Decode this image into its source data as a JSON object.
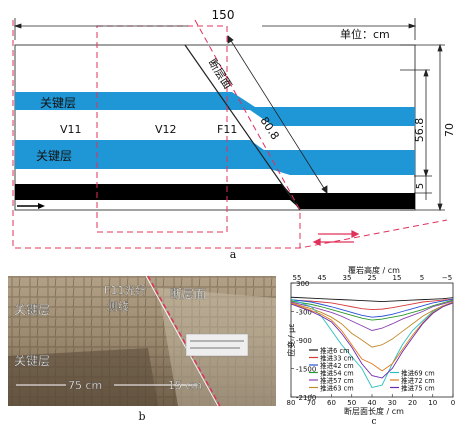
{
  "panel_a": {
    "panel_label": "a",
    "dim_top": "150",
    "unit": "单位：cm",
    "fault_label": "断层面",
    "fault_length": "80.8",
    "key_layer_1": "关键层",
    "key_layer_2": "关键层",
    "line_v11": "V11",
    "line_v12": "V12",
    "line_f11": "F11",
    "dim_56_8": "56.8",
    "dim_70": "70",
    "dim_5": "5",
    "colors": {
      "key_layer": "#1f97d6",
      "coal": "#000000",
      "dash": "#e0305a"
    }
  },
  "panel_b": {
    "panel_label": "b",
    "label_key_upper": "关键层",
    "label_key_lower": "关键层",
    "label_fiber_1": "F11光纤",
    "label_fiber_2": "测线",
    "label_fault": "断层面",
    "label_75": "75 cm",
    "label_15": "15 cm"
  },
  "chart_data": {
    "type": "line",
    "panel_label": "c",
    "top_axis_label": "覆岩高度 / cm",
    "top_ticks": [
      "55",
      "45",
      "35",
      "25",
      "15",
      "5",
      "−5"
    ],
    "xlabel": "断层面长度 / cm",
    "ylabel": "应变 / με",
    "xlim": [
      80,
      0
    ],
    "ylim": [
      -2100,
      300
    ],
    "x_ticks": [
      80,
      70,
      60,
      50,
      40,
      30,
      20,
      10,
      0
    ],
    "y_ticks": [
      300,
      -300,
      -900,
      -1500,
      -2100
    ],
    "legend_left": [
      "推进6 cm",
      "推进33 cm",
      "推进42 cm",
      "推进54 cm",
      "推进57 cm",
      "推进63 cm"
    ],
    "legend_right": [
      "推进69 cm",
      "推进72 cm",
      "推进75 cm"
    ],
    "x": [
      80,
      70,
      65,
      60,
      55,
      50,
      45,
      40,
      35,
      30,
      25,
      20,
      15,
      10,
      5,
      0
    ],
    "series": [
      {
        "name": "推进6 cm",
        "color": "#1a1a1a",
        "values": [
          0,
          -20,
          -30,
          -40,
          -50,
          -60,
          -70,
          -80,
          -90,
          -80,
          -70,
          -60,
          -50,
          -40,
          -30,
          -10
        ]
      },
      {
        "name": "推进33 cm",
        "color": "#d63a3a",
        "values": [
          -60,
          -80,
          -100,
          -120,
          -160,
          -200,
          -240,
          -260,
          -250,
          -220,
          -180,
          -140,
          -100,
          -80,
          -60,
          -40
        ]
      },
      {
        "name": "推进42 cm",
        "color": "#2a4fd6",
        "values": [
          -50,
          -100,
          -150,
          -200,
          -260,
          -320,
          -380,
          -420,
          -400,
          -360,
          -300,
          -240,
          -180,
          -120,
          -80,
          -40
        ]
      },
      {
        "name": "推进54 cm",
        "color": "#2a9a2a",
        "values": [
          -80,
          -150,
          -200,
          -260,
          -320,
          -380,
          -440,
          -480,
          -460,
          -420,
          -380,
          -320,
          -260,
          -180,
          -120,
          -60
        ]
      },
      {
        "name": "推进57 cm",
        "color": "#8a3fb0",
        "values": [
          -100,
          -200,
          -260,
          -320,
          -400,
          -500,
          -600,
          -700,
          -650,
          -560,
          -460,
          -380,
          -300,
          -200,
          -140,
          -80
        ]
      },
      {
        "name": "推进63 cm",
        "color": "#c08a2a",
        "values": [
          -120,
          -240,
          -320,
          -420,
          -560,
          -760,
          -900,
          -1050,
          -1000,
          -880,
          -720,
          -560,
          -400,
          -280,
          -180,
          -100
        ]
      },
      {
        "name": "推进69 cm",
        "color": "#2abfbf",
        "values": [
          -40,
          -200,
          -400,
          -700,
          -1000,
          -1250,
          -1500,
          -1900,
          -1850,
          -1400,
          -1000,
          -700,
          -500,
          -300,
          -200,
          -100
        ]
      },
      {
        "name": "推进72 cm",
        "color": "#e07a1a",
        "values": [
          -120,
          -280,
          -360,
          -480,
          -700,
          -1000,
          -1300,
          -1400,
          -1550,
          -1400,
          -1100,
          -800,
          -540,
          -320,
          -200,
          -100
        ]
      },
      {
        "name": "推进75 cm",
        "color": "#6a2ab0",
        "values": [
          -140,
          -300,
          -400,
          -520,
          -760,
          -1050,
          -1400,
          -1650,
          -1700,
          -1500,
          -1150,
          -850,
          -560,
          -340,
          -200,
          -120
        ]
      }
    ]
  }
}
